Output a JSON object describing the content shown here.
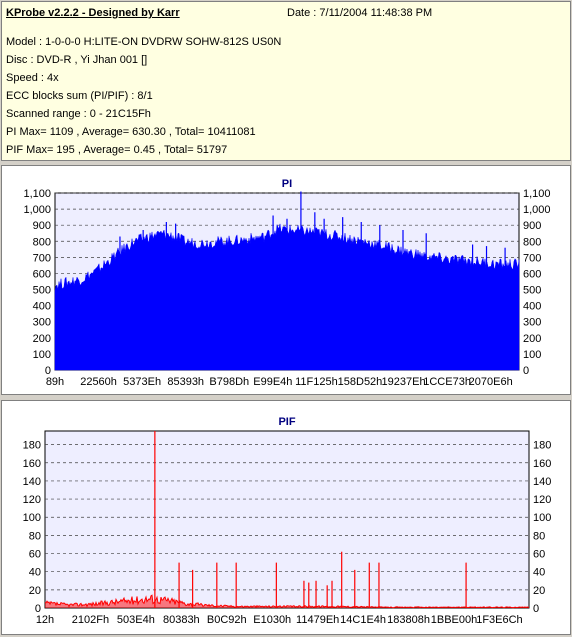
{
  "app_title": "KProbe v2.2.2 - Designed by Karr",
  "date_line": "Date : 7/11/2004 11:48:38 PM",
  "info_lines": [
    "Model : 1-0-0-0 H:LITE-ON DVDRW SOHW-812S  US0N",
    "Disc : DVD-R , Yi Jhan 001 []",
    "Speed : 4x",
    "ECC blocks sum (PI/PIF) : 8/1",
    "Scanned range : 0 - 21C15Fh",
    "PI Max= 1109 , Average= 630.30 , Total= 10411081",
    "PIF Max= 195 , Average= 0.45 , Total= 51797"
  ],
  "colors": {
    "pi_fill": "#0000ff",
    "pif_line": "#ff0000",
    "plot_bg": "#eeeeff",
    "panel_bg": "#ffffe1",
    "grid": "#404040"
  },
  "chart_data": [
    {
      "type": "area",
      "title": "PI",
      "ylim": [
        0,
        1100
      ],
      "y_ticks": [
        0,
        100,
        200,
        300,
        400,
        500,
        600,
        700,
        800,
        900,
        1000,
        1100
      ],
      "y_tick_labels": [
        "0",
        "100",
        "200",
        "300",
        "400",
        "500",
        "600",
        "700",
        "800",
        "900",
        "1,000",
        "1,100"
      ],
      "x_tick_labels": [
        "89h",
        "22560h",
        "5373Eh",
        "85393h",
        "B798Dh",
        "E99E4h",
        "11F125h",
        "158D52h",
        "19237Eh",
        "1CCE73h",
        "2070E6h"
      ],
      "grid": true,
      "envelope": [
        [
          0,
          520
        ],
        [
          0.03,
          540
        ],
        [
          0.06,
          560
        ],
        [
          0.09,
          610
        ],
        [
          0.12,
          680
        ],
        [
          0.15,
          750
        ],
        [
          0.17,
          790
        ],
        [
          0.2,
          820
        ],
        [
          0.23,
          840
        ],
        [
          0.26,
          820
        ],
        [
          0.28,
          790
        ],
        [
          0.31,
          780
        ],
        [
          0.35,
          790
        ],
        [
          0.4,
          800
        ],
        [
          0.45,
          820
        ],
        [
          0.48,
          870
        ],
        [
          0.52,
          860
        ],
        [
          0.56,
          850
        ],
        [
          0.6,
          830
        ],
        [
          0.65,
          800
        ],
        [
          0.7,
          770
        ],
        [
          0.75,
          730
        ],
        [
          0.8,
          700
        ],
        [
          0.85,
          680
        ],
        [
          0.9,
          670
        ],
        [
          0.95,
          650
        ],
        [
          1,
          650
        ]
      ],
      "spikes": [
        [
          0.14,
          830
        ],
        [
          0.19,
          870
        ],
        [
          0.24,
          920
        ],
        [
          0.26,
          910
        ],
        [
          0.47,
          960
        ],
        [
          0.5,
          940
        ],
        [
          0.53,
          1109
        ],
        [
          0.56,
          980
        ],
        [
          0.58,
          940
        ],
        [
          0.62,
          950
        ],
        [
          0.66,
          920
        ],
        [
          0.7,
          900
        ],
        [
          0.75,
          870
        ],
        [
          0.8,
          850
        ],
        [
          0.9,
          780
        ],
        [
          0.93,
          770
        ],
        [
          0.97,
          760
        ]
      ]
    },
    {
      "type": "line",
      "title": "PIF",
      "ylim": [
        0,
        195
      ],
      "y_ticks": [
        0,
        20,
        40,
        60,
        80,
        100,
        120,
        140,
        160,
        180
      ],
      "y_tick_labels": [
        "0",
        "20",
        "40",
        "60",
        "80",
        "100",
        "120",
        "140",
        "160",
        "180"
      ],
      "x_tick_labels": [
        "12h",
        "2102Fh",
        "503E4h",
        "80383h",
        "B0C92h",
        "E1030h",
        "11479Eh",
        "14C1E4h",
        "183808h",
        "1BBE00h",
        "1F3E6Ch"
      ],
      "grid": true,
      "baseline": [
        [
          0,
          6
        ],
        [
          0.05,
          4
        ],
        [
          0.1,
          5
        ],
        [
          0.15,
          8
        ],
        [
          0.2,
          11
        ],
        [
          0.22,
          12
        ],
        [
          0.25,
          10
        ],
        [
          0.3,
          5
        ],
        [
          0.35,
          3
        ],
        [
          0.4,
          2
        ],
        [
          0.5,
          2
        ],
        [
          0.6,
          2
        ],
        [
          0.7,
          1
        ],
        [
          0.8,
          1
        ],
        [
          0.9,
          1
        ],
        [
          1,
          1
        ]
      ],
      "spikes": [
        [
          0.227,
          195
        ],
        [
          0.277,
          50
        ],
        [
          0.305,
          42
        ],
        [
          0.355,
          50
        ],
        [
          0.395,
          50
        ],
        [
          0.478,
          50
        ],
        [
          0.535,
          30
        ],
        [
          0.545,
          28
        ],
        [
          0.56,
          30
        ],
        [
          0.583,
          25
        ],
        [
          0.593,
          30
        ],
        [
          0.613,
          62
        ],
        [
          0.64,
          42
        ],
        [
          0.67,
          50
        ],
        [
          0.69,
          50
        ],
        [
          0.87,
          50
        ]
      ]
    }
  ]
}
